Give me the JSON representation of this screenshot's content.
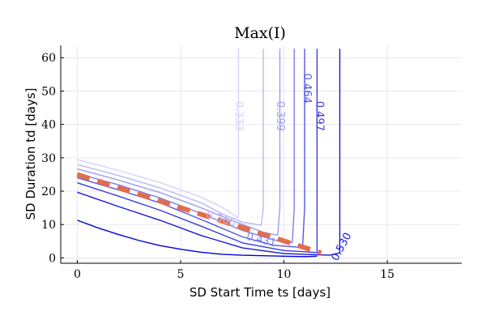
{
  "chart_data": {
    "type": "contour",
    "title": "Max(I)",
    "xlabel": "SD Start Time ts [days]",
    "ylabel": "SD Duration td [days]",
    "xlim": [
      -0.8,
      18.6
    ],
    "ylim": [
      -1.6,
      63.7
    ],
    "xticks": [
      0,
      5,
      10,
      15
    ],
    "yticks": [
      0,
      10,
      20,
      30,
      40,
      50,
      60
    ],
    "grid": true,
    "contours": [
      {
        "level": 0.333,
        "label": "0.333",
        "color": "#d3d3fb",
        "points": [
          [
            0,
            29.5
          ],
          [
            2,
            26.2
          ],
          [
            4,
            22.6
          ],
          [
            6,
            18.2
          ],
          [
            7,
            15.2
          ],
          [
            7.5,
            13.2
          ],
          [
            7.8,
            12
          ],
          [
            7.8,
            20
          ],
          [
            7.8,
            40
          ],
          [
            7.8,
            62.7
          ]
        ],
        "label_at": [
          7.8,
          42.5
        ],
        "label_rot": 90
      },
      {
        "level": 0.366,
        "label": "0.366",
        "color": "#b8b8f6",
        "points": [
          [
            0,
            28
          ],
          [
            2,
            24.7
          ],
          [
            4,
            21
          ],
          [
            6,
            16.5
          ],
          [
            7,
            13.2
          ],
          [
            8,
            10.7
          ],
          [
            8.9,
            9.8
          ],
          [
            9,
            15
          ],
          [
            9,
            40
          ],
          [
            9,
            62.7
          ]
        ],
        "label_at": [
          6.95,
          11.6
        ],
        "label_rot": 17
      },
      {
        "level": 0.399,
        "label": "0.399",
        "color": "#9c9cf1",
        "points": [
          [
            0,
            26.7
          ],
          [
            2,
            23.3
          ],
          [
            4,
            19.6
          ],
          [
            6,
            15
          ],
          [
            7.5,
            11.2
          ],
          [
            9,
            7.7
          ],
          [
            9.7,
            6.8
          ],
          [
            9.8,
            15
          ],
          [
            9.8,
            40
          ],
          [
            9.8,
            62.7
          ]
        ],
        "label_at": [
          9.8,
          42.5
        ],
        "label_rot": 90
      },
      {
        "level": 0.431,
        "label": "0.431",
        "color": "#8080ec",
        "points": [
          [
            0,
            25.3
          ],
          [
            2,
            21.9
          ],
          [
            4,
            18
          ],
          [
            6,
            13.3
          ],
          [
            8,
            8.2
          ],
          [
            9.5,
            5.4
          ],
          [
            10.4,
            4.6
          ],
          [
            10.5,
            15
          ],
          [
            10.5,
            40
          ],
          [
            10.5,
            62.7
          ]
        ],
        "label_at": [
          8.9,
          5.3
        ],
        "label_rot": 14
      },
      {
        "level": 0.464,
        "label": "0.464",
        "color": "#5656e6",
        "points": [
          [
            0,
            24
          ],
          [
            2,
            20.4
          ],
          [
            4,
            16.5
          ],
          [
            6,
            11.5
          ],
          [
            8,
            6.3
          ],
          [
            9.5,
            3.8
          ],
          [
            10.9,
            3.1
          ],
          [
            11,
            15
          ],
          [
            11,
            40
          ],
          [
            11,
            62.7
          ]
        ],
        "label_at": [
          11.1,
          50.8
        ],
        "label_rot": 90
      },
      {
        "level": 0.497,
        "label": "0.497",
        "color": "#3a3ae2",
        "points": [
          [
            0,
            22.5
          ],
          [
            2,
            18.5
          ],
          [
            4,
            14.3
          ],
          [
            6,
            9.5
          ],
          [
            8,
            4.5
          ],
          [
            10,
            2.2
          ],
          [
            11.6,
            1.6
          ],
          [
            11.6,
            15
          ],
          [
            11.6,
            40
          ],
          [
            11.6,
            62.7
          ]
        ],
        "label_at": [
          11.7,
          42.5
        ],
        "label_rot": 90
      },
      {
        "level": 0.53,
        "label": "0.530",
        "color": "#1717dd",
        "points": [
          [
            0,
            19.7
          ],
          [
            2,
            15.4
          ],
          [
            4,
            11.3
          ],
          [
            6,
            6.7
          ],
          [
            8,
            3
          ],
          [
            10,
            1.3
          ],
          [
            12.2,
            0.8
          ],
          [
            12.7,
            1.5
          ],
          [
            12.7,
            15
          ],
          [
            12.7,
            40
          ],
          [
            12.7,
            62.7
          ]
        ],
        "label_at": [
          12.8,
          3.3
        ],
        "label_rot": -62
      },
      {
        "level": null,
        "label": "",
        "color": "#0000d9",
        "points": [
          [
            0,
            11.3
          ],
          [
            1,
            9
          ],
          [
            2,
            7
          ],
          [
            3,
            5.2
          ],
          [
            4,
            3.7
          ],
          [
            5,
            2.6
          ],
          [
            6,
            1.7
          ],
          [
            7,
            1.1
          ],
          [
            8,
            0.8
          ],
          [
            10,
            0.5
          ],
          [
            11,
            0.4
          ],
          [
            11.6,
            0.5
          ]
        ],
        "label_at": null,
        "label_rot": 0
      }
    ],
    "dashed_line": {
      "color": "#e46c4a",
      "points": [
        [
          0,
          25
        ],
        [
          11.8,
          1.5
        ]
      ]
    }
  }
}
